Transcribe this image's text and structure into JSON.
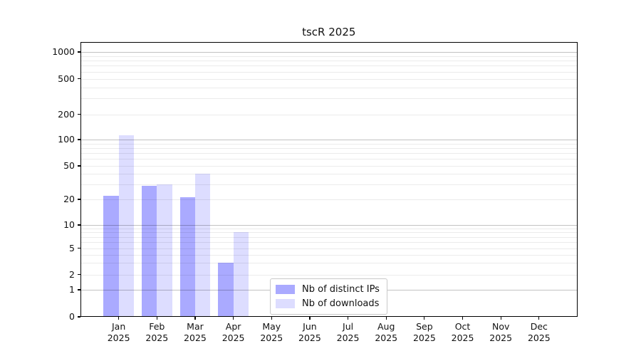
{
  "title": "tscR 2025",
  "legend": {
    "items": [
      {
        "label": "Nb of distinct IPs",
        "color": "#aaaaff"
      },
      {
        "label": "Nb of downloads",
        "color": "#ddddff"
      }
    ]
  },
  "y_axis": {
    "tick_labels": [
      "0",
      "1",
      "2",
      "5",
      "10",
      "20",
      "50",
      "100",
      "200",
      "500",
      "1000"
    ]
  },
  "x_axis": {
    "months": [
      "Jan",
      "Feb",
      "Mar",
      "Apr",
      "May",
      "Jun",
      "Jul",
      "Aug",
      "Sep",
      "Oct",
      "Nov",
      "Dec"
    ],
    "year": "2025"
  },
  "chart_data": {
    "type": "bar",
    "title": "tscR 2025",
    "categories": [
      "Jan 2025",
      "Feb 2025",
      "Mar 2025",
      "Apr 2025",
      "May 2025",
      "Jun 2025",
      "Jul 2025",
      "Aug 2025",
      "Sep 2025",
      "Oct 2025",
      "Nov 2025",
      "Dec 2025"
    ],
    "series": [
      {
        "name": "Nb of distinct IPs",
        "color": "#aaaaff",
        "values": [
          22,
          29,
          21,
          3,
          0,
          0,
          0,
          0,
          0,
          0,
          0,
          0
        ]
      },
      {
        "name": "Nb of downloads",
        "color": "#ddddff",
        "values": [
          112,
          30,
          40,
          8,
          0,
          0,
          0,
          0,
          0,
          0,
          0,
          0
        ]
      }
    ],
    "xlabel": "",
    "ylabel": "",
    "yscale": "symlog",
    "y_ticks": [
      0,
      1,
      2,
      5,
      10,
      20,
      50,
      100,
      200,
      500,
      1000
    ],
    "ylim": [
      0,
      1300
    ],
    "grid": "horizontal",
    "legend_position": "inside lower center"
  }
}
